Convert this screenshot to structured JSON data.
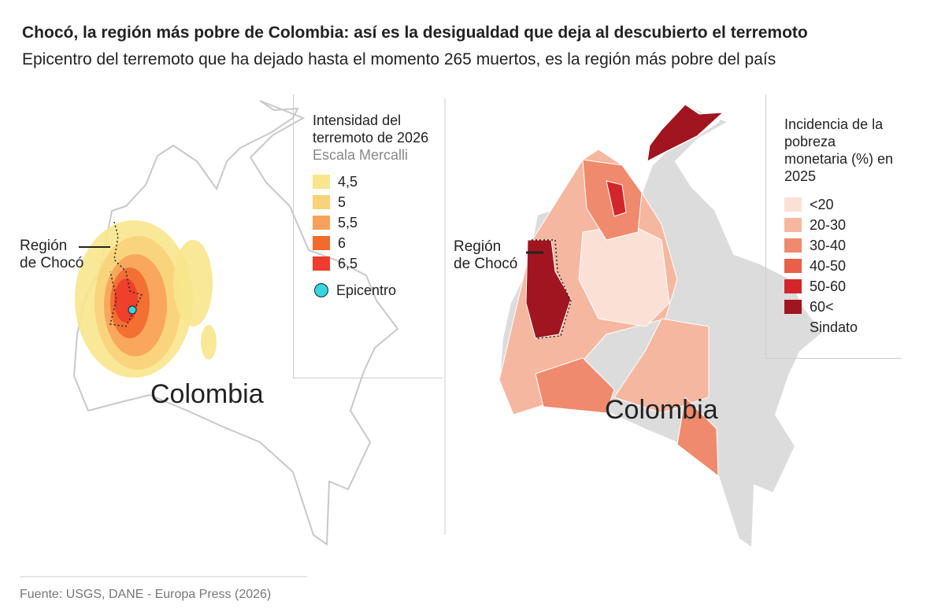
{
  "header": {
    "title": "Chocó, la región más pobre de Colombia: así es la desigualdad que deja al descubierto el terremoto",
    "subtitle": "Epicentro del terremoto que ha dejado hasta el momento 265 muertos, es la región más pobre del país"
  },
  "maps": [
    {
      "legend": {
        "title": "Intensidad del terremoto de 2026",
        "subtitle": "Escala Mercalli",
        "items": [
          {
            "label": "4,5",
            "color": "#f7e68c"
          },
          {
            "label": "5",
            "color": "#f9d27a"
          },
          {
            "label": "5,5",
            "color": "#f7a25a"
          },
          {
            "label": "6",
            "color": "#f26a2e"
          },
          {
            "label": "6,5",
            "color": "#ee3b2b"
          }
        ],
        "marker": {
          "label": "Epicentro",
          "color": "#35d6e0"
        }
      },
      "region_label": [
        "Región",
        "de Chocó"
      ],
      "country_label": "Colombia"
    },
    {
      "legend": {
        "title": "Incidencia de la pobreza monetaria (%) en 2025",
        "items": [
          {
            "label": "<20",
            "color": "#fbe0d6"
          },
          {
            "label": "20-30",
            "color": "#f6b7a0"
          },
          {
            "label": "30-40",
            "color": "#ef8a6c"
          },
          {
            "label": "40-50",
            "color": "#e8604a"
          },
          {
            "label": "50-60",
            "color": "#d2262c"
          },
          {
            "label": "60<",
            "color": "#a0151f"
          },
          {
            "label": "Sindato",
            "color": "#dcdcdc"
          }
        ]
      },
      "region_label": [
        "Región",
        "de Chocó"
      ],
      "country_label": "Colombia"
    }
  ],
  "footer": {
    "source": "Fuente: USGS, DANE - Europa Press (2026)"
  }
}
